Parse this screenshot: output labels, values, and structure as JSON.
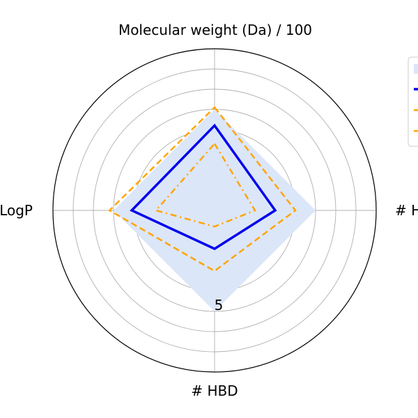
{
  "chart_data": {
    "type": "radar",
    "axes": [
      "Molecular weight (Da) / 100",
      "# HBA",
      "# HBD",
      "LogP"
    ],
    "radial_ticks": [
      1,
      2,
      3,
      4,
      5,
      6,
      7,
      8
    ],
    "radial_tick_label": "5",
    "rmax": 8,
    "grid": true,
    "legend_position": "upper-right",
    "series": [
      {
        "kind": "area",
        "color": "#dce6f9",
        "values": [
          5,
          5,
          5,
          5
        ]
      },
      {
        "kind": "line",
        "style": "solid",
        "color": "#0000ee",
        "values": [
          4.2,
          3,
          1.9,
          4.1
        ]
      },
      {
        "kind": "line",
        "style": "dashed",
        "color": "#ffa500",
        "values": [
          5.1,
          4,
          3,
          5.2
        ]
      },
      {
        "kind": "line",
        "style": "dashdot",
        "color": "#ffa500",
        "values": [
          3.3,
          2,
          0.8,
          2.9
        ]
      }
    ]
  }
}
